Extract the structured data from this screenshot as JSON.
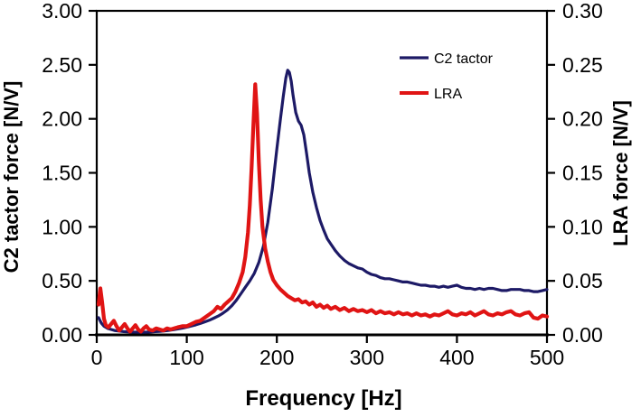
{
  "figure": {
    "background": "#ffffff",
    "axis_color": "#000000",
    "legend": {
      "items": [
        {
          "label": "C2 tactor",
          "color": "#1d1a66"
        },
        {
          "label": "LRA",
          "color": "#e01414"
        }
      ]
    }
  },
  "chart_data": {
    "type": "line",
    "title": "",
    "xlabel": "Frequency [Hz]",
    "ylabel_left": "C2 tactor force [N/V]",
    "ylabel_right": "LRA force [N/V]",
    "x_range": [
      0,
      500
    ],
    "x_ticks": [
      "0",
      "100",
      "200",
      "300",
      "400",
      "500"
    ],
    "y_left_range": [
      0,
      3.0
    ],
    "y_left_ticks": [
      "0.00",
      "0.50",
      "1.00",
      "1.50",
      "2.00",
      "2.50",
      "3.00"
    ],
    "y_right_range": [
      0,
      0.3
    ],
    "y_right_ticks": [
      "0.00",
      "0.05",
      "0.10",
      "0.15",
      "0.20",
      "0.25",
      "0.30"
    ],
    "grid": false,
    "legend_position": "upper-right-inside",
    "series": [
      {
        "name": "C2 tactor",
        "axis": "left",
        "color": "#1d1a66",
        "stroke_width": 3.2,
        "peak": {
          "x": 212,
          "y": 2.45
        },
        "points": [
          [
            2,
            0.16
          ],
          [
            5,
            0.11
          ],
          [
            8,
            0.08
          ],
          [
            12,
            0.06
          ],
          [
            16,
            0.05
          ],
          [
            20,
            0.04
          ],
          [
            25,
            0.035
          ],
          [
            30,
            0.03
          ],
          [
            35,
            0.028
          ],
          [
            40,
            0.026
          ],
          [
            45,
            0.025
          ],
          [
            50,
            0.024
          ],
          [
            55,
            0.025
          ],
          [
            60,
            0.027
          ],
          [
            65,
            0.03
          ],
          [
            70,
            0.033
          ],
          [
            75,
            0.037
          ],
          [
            80,
            0.042
          ],
          [
            85,
            0.048
          ],
          [
            90,
            0.055
          ],
          [
            95,
            0.063
          ],
          [
            100,
            0.072
          ],
          [
            105,
            0.082
          ],
          [
            110,
            0.093
          ],
          [
            115,
            0.105
          ],
          [
            120,
            0.12
          ],
          [
            125,
            0.135
          ],
          [
            130,
            0.155
          ],
          [
            135,
            0.175
          ],
          [
            140,
            0.2
          ],
          [
            145,
            0.23
          ],
          [
            150,
            0.27
          ],
          [
            155,
            0.32
          ],
          [
            160,
            0.38
          ],
          [
            165,
            0.44
          ],
          [
            170,
            0.5
          ],
          [
            175,
            0.57
          ],
          [
            180,
            0.67
          ],
          [
            185,
            0.82
          ],
          [
            190,
            1.04
          ],
          [
            195,
            1.35
          ],
          [
            200,
            1.72
          ],
          [
            204,
            2.0
          ],
          [
            207,
            2.2
          ],
          [
            210,
            2.38
          ],
          [
            212,
            2.45
          ],
          [
            214,
            2.43
          ],
          [
            216,
            2.35
          ],
          [
            218,
            2.22
          ],
          [
            221,
            2.06
          ],
          [
            224,
            1.98
          ],
          [
            227,
            1.94
          ],
          [
            230,
            1.85
          ],
          [
            233,
            1.68
          ],
          [
            236,
            1.5
          ],
          [
            240,
            1.32
          ],
          [
            244,
            1.18
          ],
          [
            248,
            1.06
          ],
          [
            252,
            0.97
          ],
          [
            256,
            0.89
          ],
          [
            260,
            0.84
          ],
          [
            265,
            0.78
          ],
          [
            270,
            0.73
          ],
          [
            275,
            0.69
          ],
          [
            280,
            0.66
          ],
          [
            285,
            0.64
          ],
          [
            290,
            0.62
          ],
          [
            295,
            0.61
          ],
          [
            300,
            0.58
          ],
          [
            305,
            0.56
          ],
          [
            310,
            0.55
          ],
          [
            315,
            0.53
          ],
          [
            320,
            0.52
          ],
          [
            325,
            0.52
          ],
          [
            330,
            0.51
          ],
          [
            335,
            0.5
          ],
          [
            340,
            0.49
          ],
          [
            345,
            0.49
          ],
          [
            350,
            0.48
          ],
          [
            355,
            0.47
          ],
          [
            360,
            0.46
          ],
          [
            365,
            0.46
          ],
          [
            370,
            0.45
          ],
          [
            375,
            0.45
          ],
          [
            380,
            0.44
          ],
          [
            385,
            0.45
          ],
          [
            390,
            0.44
          ],
          [
            395,
            0.45
          ],
          [
            400,
            0.46
          ],
          [
            405,
            0.44
          ],
          [
            410,
            0.43
          ],
          [
            415,
            0.43
          ],
          [
            420,
            0.42
          ],
          [
            425,
            0.43
          ],
          [
            430,
            0.42
          ],
          [
            435,
            0.43
          ],
          [
            440,
            0.43
          ],
          [
            445,
            0.42
          ],
          [
            450,
            0.41
          ],
          [
            455,
            0.41
          ],
          [
            460,
            0.42
          ],
          [
            465,
            0.42
          ],
          [
            470,
            0.42
          ],
          [
            475,
            0.41
          ],
          [
            480,
            0.41
          ],
          [
            485,
            0.4
          ],
          [
            490,
            0.4
          ],
          [
            495,
            0.41
          ],
          [
            500,
            0.42
          ]
        ]
      },
      {
        "name": "LRA",
        "axis": "right",
        "color": "#e01414",
        "stroke_width": 4.2,
        "peak": {
          "x": 176,
          "y": 0.232
        },
        "points": [
          [
            2,
            0.028
          ],
          [
            4,
            0.043
          ],
          [
            6,
            0.03
          ],
          [
            8,
            0.015
          ],
          [
            10,
            0.009
          ],
          [
            13,
            0.007
          ],
          [
            16,
            0.01
          ],
          [
            19,
            0.013
          ],
          [
            22,
            0.008
          ],
          [
            25,
            0.004
          ],
          [
            28,
            0.007
          ],
          [
            31,
            0.01
          ],
          [
            34,
            0.006
          ],
          [
            37,
            0.003
          ],
          [
            40,
            0.006
          ],
          [
            43,
            0.009
          ],
          [
            46,
            0.005
          ],
          [
            49,
            0.003
          ],
          [
            52,
            0.006
          ],
          [
            55,
            0.008
          ],
          [
            58,
            0.005
          ],
          [
            62,
            0.004
          ],
          [
            66,
            0.006
          ],
          [
            70,
            0.005
          ],
          [
            74,
            0.004
          ],
          [
            78,
            0.006
          ],
          [
            82,
            0.005
          ],
          [
            86,
            0.006
          ],
          [
            90,
            0.007
          ],
          [
            95,
            0.008
          ],
          [
            100,
            0.008
          ],
          [
            105,
            0.01
          ],
          [
            110,
            0.012
          ],
          [
            115,
            0.013
          ],
          [
            120,
            0.016
          ],
          [
            125,
            0.019
          ],
          [
            130,
            0.022
          ],
          [
            134,
            0.026
          ],
          [
            138,
            0.024
          ],
          [
            142,
            0.028
          ],
          [
            146,
            0.031
          ],
          [
            150,
            0.034
          ],
          [
            154,
            0.04
          ],
          [
            158,
            0.048
          ],
          [
            162,
            0.058
          ],
          [
            165,
            0.072
          ],
          [
            168,
            0.095
          ],
          [
            170,
            0.12
          ],
          [
            172,
            0.155
          ],
          [
            174,
            0.195
          ],
          [
            176,
            0.232
          ],
          [
            178,
            0.205
          ],
          [
            180,
            0.16
          ],
          [
            182,
            0.125
          ],
          [
            184,
            0.1
          ],
          [
            187,
            0.08
          ],
          [
            190,
            0.068
          ],
          [
            193,
            0.058
          ],
          [
            196,
            0.051
          ],
          [
            200,
            0.046
          ],
          [
            204,
            0.042
          ],
          [
            208,
            0.039
          ],
          [
            212,
            0.036
          ],
          [
            216,
            0.034
          ],
          [
            220,
            0.032
          ],
          [
            224,
            0.033
          ],
          [
            228,
            0.03
          ],
          [
            232,
            0.031
          ],
          [
            236,
            0.028
          ],
          [
            240,
            0.03
          ],
          [
            244,
            0.026
          ],
          [
            248,
            0.028
          ],
          [
            252,
            0.025
          ],
          [
            256,
            0.027
          ],
          [
            260,
            0.024
          ],
          [
            265,
            0.026
          ],
          [
            270,
            0.023
          ],
          [
            275,
            0.025
          ],
          [
            280,
            0.022
          ],
          [
            285,
            0.024
          ],
          [
            290,
            0.022
          ],
          [
            295,
            0.023
          ],
          [
            300,
            0.021
          ],
          [
            305,
            0.023
          ],
          [
            310,
            0.02
          ],
          [
            315,
            0.022
          ],
          [
            320,
            0.02
          ],
          [
            325,
            0.021
          ],
          [
            330,
            0.019
          ],
          [
            335,
            0.021
          ],
          [
            340,
            0.019
          ],
          [
            345,
            0.02
          ],
          [
            350,
            0.018
          ],
          [
            355,
            0.02
          ],
          [
            360,
            0.018
          ],
          [
            365,
            0.019
          ],
          [
            370,
            0.017
          ],
          [
            375,
            0.019
          ],
          [
            380,
            0.018
          ],
          [
            385,
            0.02
          ],
          [
            390,
            0.022
          ],
          [
            395,
            0.019
          ],
          [
            400,
            0.018
          ],
          [
            405,
            0.02
          ],
          [
            410,
            0.019
          ],
          [
            415,
            0.021
          ],
          [
            420,
            0.018
          ],
          [
            425,
            0.02
          ],
          [
            430,
            0.022
          ],
          [
            435,
            0.019
          ],
          [
            440,
            0.018
          ],
          [
            445,
            0.02
          ],
          [
            450,
            0.019
          ],
          [
            455,
            0.021
          ],
          [
            460,
            0.022
          ],
          [
            465,
            0.019
          ],
          [
            470,
            0.018
          ],
          [
            475,
            0.02
          ],
          [
            480,
            0.021
          ],
          [
            485,
            0.016
          ],
          [
            490,
            0.015
          ],
          [
            495,
            0.018
          ],
          [
            500,
            0.017
          ]
        ]
      }
    ]
  }
}
